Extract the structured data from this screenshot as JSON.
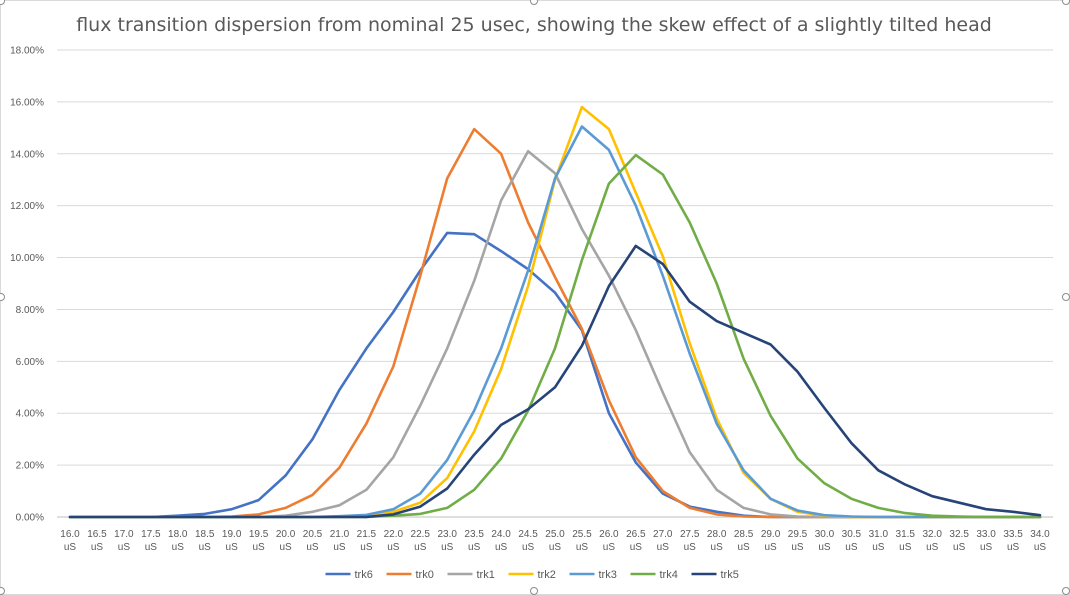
{
  "chart_data": {
    "type": "line",
    "title": "flux transition dispersion from nominal 25 usec, showing the skew effect of a slightly tilted head",
    "xlabel": "",
    "ylabel": "",
    "ylim": [
      0,
      18
    ],
    "y_ticks": [
      "0.00%",
      "2.00%",
      "4.00%",
      "6.00%",
      "8.00%",
      "10.00%",
      "12.00%",
      "14.00%",
      "16.00%",
      "18.00%"
    ],
    "grid": true,
    "legend_position": "bottom",
    "x": [
      "16.0",
      "16.5",
      "17.0",
      "17.5",
      "18.0",
      "18.5",
      "19.0",
      "19.5",
      "20.0",
      "20.5",
      "21.0",
      "21.5",
      "22.0",
      "22.5",
      "23.0",
      "23.5",
      "24.0",
      "24.5",
      "25.0",
      "25.5",
      "26.0",
      "26.5",
      "27.0",
      "27.5",
      "28.0",
      "28.5",
      "29.0",
      "29.5",
      "30.0",
      "30.5",
      "31.0",
      "31.5",
      "32.0",
      "32.5",
      "33.0",
      "33.5",
      "34.0"
    ],
    "x_unit": "uS",
    "series": [
      {
        "name": "trk6",
        "color": "#4472C4",
        "values": [
          0,
          0,
          0,
          0,
          0.05,
          0.12,
          0.3,
          0.65,
          1.6,
          3.0,
          4.9,
          6.5,
          7.9,
          9.5,
          10.95,
          10.9,
          10.25,
          9.55,
          8.65,
          7.2,
          4.0,
          2.1,
          0.9,
          0.4,
          0.2,
          0.05,
          0,
          0,
          0,
          0,
          0,
          0,
          0,
          0,
          0,
          0,
          0
        ]
      },
      {
        "name": "trk0",
        "color": "#ED7D31",
        "values": [
          0,
          0,
          0,
          0,
          0,
          0,
          0.02,
          0.1,
          0.35,
          0.85,
          1.9,
          3.6,
          5.8,
          9.3,
          13.05,
          14.95,
          14.0,
          11.35,
          9.25,
          7.25,
          4.5,
          2.3,
          1.0,
          0.35,
          0.1,
          0.02,
          0,
          0,
          0,
          0,
          0,
          0,
          0,
          0,
          0,
          0,
          0
        ]
      },
      {
        "name": "trk1",
        "color": "#A5A5A5",
        "values": [
          0,
          0,
          0,
          0,
          0,
          0,
          0,
          0,
          0.05,
          0.2,
          0.45,
          1.05,
          2.3,
          4.3,
          6.5,
          9.1,
          12.2,
          14.1,
          13.25,
          11.1,
          9.3,
          7.2,
          4.8,
          2.5,
          1.05,
          0.35,
          0.1,
          0.02,
          0,
          0,
          0,
          0,
          0,
          0,
          0,
          0,
          0
        ]
      },
      {
        "name": "trk2",
        "color": "#FFC000",
        "values": [
          0,
          0,
          0,
          0,
          0,
          0,
          0,
          0,
          0,
          0,
          0.02,
          0.05,
          0.2,
          0.55,
          1.5,
          3.3,
          5.7,
          8.9,
          13.0,
          15.8,
          14.95,
          12.5,
          10.05,
          6.7,
          3.8,
          1.7,
          0.7,
          0.2,
          0.05,
          0,
          0,
          0,
          0,
          0,
          0,
          0,
          0
        ]
      },
      {
        "name": "trk3",
        "color": "#5B9BD5",
        "values": [
          0,
          0,
          0,
          0,
          0,
          0,
          0,
          0,
          0,
          0,
          0.03,
          0.08,
          0.3,
          0.9,
          2.2,
          4.1,
          6.5,
          9.5,
          13.05,
          15.05,
          14.15,
          12.0,
          9.3,
          6.3,
          3.6,
          1.8,
          0.7,
          0.25,
          0.07,
          0.02,
          0,
          0,
          0,
          0,
          0,
          0,
          0
        ]
      },
      {
        "name": "trk4",
        "color": "#70AD47",
        "values": [
          0,
          0,
          0,
          0,
          0,
          0,
          0,
          0,
          0,
          0,
          0,
          0,
          0.05,
          0.12,
          0.35,
          1.05,
          2.25,
          4.1,
          6.5,
          9.9,
          12.85,
          13.95,
          13.2,
          11.35,
          9.0,
          6.1,
          3.9,
          2.25,
          1.3,
          0.7,
          0.35,
          0.15,
          0.05,
          0.02,
          0,
          0,
          0
        ]
      },
      {
        "name": "trk5",
        "color": "#264478",
        "values": [
          0,
          0,
          0,
          0,
          0,
          0,
          0,
          0,
          0,
          0,
          0,
          0,
          0.1,
          0.4,
          1.1,
          2.4,
          3.55,
          4.15,
          5.0,
          6.6,
          8.9,
          10.45,
          9.75,
          8.3,
          7.55,
          7.1,
          6.65,
          5.6,
          4.2,
          2.85,
          1.8,
          1.25,
          0.8,
          0.55,
          0.3,
          0.2,
          0.07
        ]
      }
    ]
  }
}
